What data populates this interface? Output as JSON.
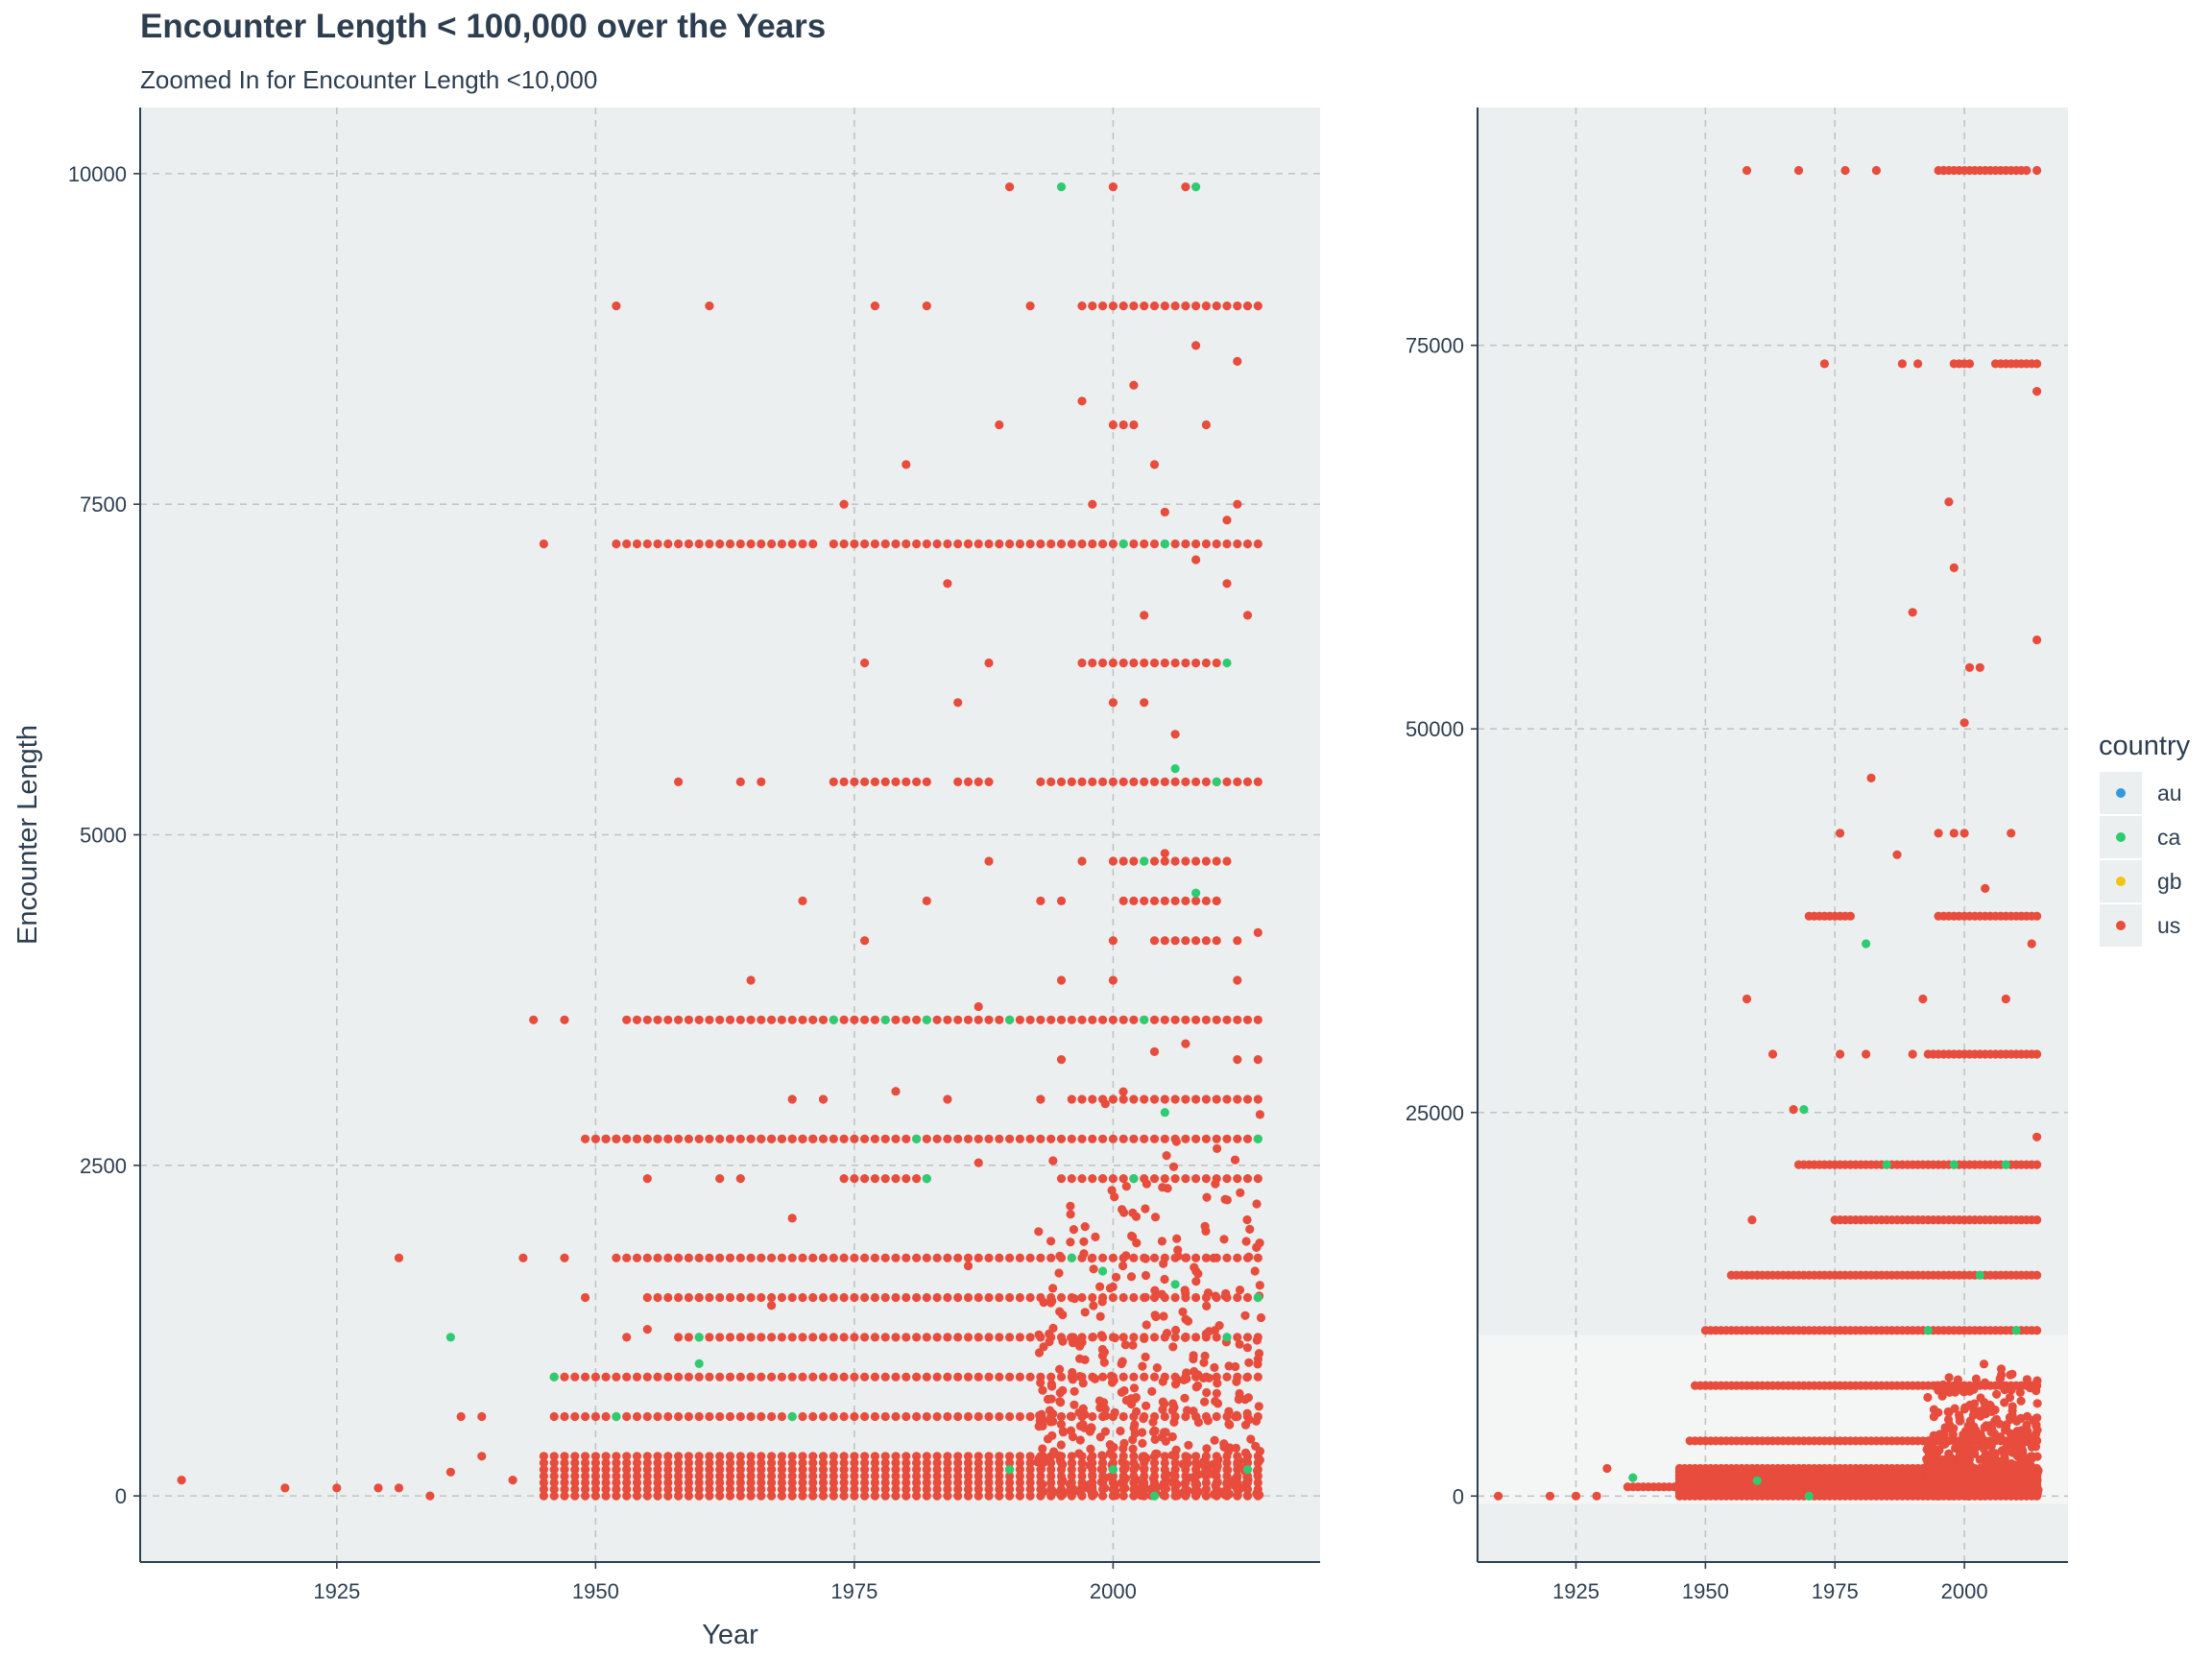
{
  "title": "Encounter Length < 100,000 over the Years",
  "subtitle": "Zoomed In for Encounter Length <10,000",
  "colors": {
    "panel": "#ebeff0",
    "grid": "#bfc4c6",
    "axis": "#2c3e50",
    "zoom": "#f4f6f6",
    "au": "#3498db",
    "ca": "#2ecc71",
    "gb": "#f1c40f",
    "us": "#e74c3c"
  },
  "legend": {
    "title": "country",
    "items": [
      {
        "key": "au",
        "label": "au"
      },
      {
        "key": "ca",
        "label": "ca"
      },
      {
        "key": "gb",
        "label": "gb"
      },
      {
        "key": "us",
        "label": "us"
      }
    ]
  },
  "chart_data": [
    {
      "type": "scatter",
      "xlabel": "Year",
      "ylabel": "Encounter Length",
      "xlim": [
        1906,
        2020
      ],
      "ylim": [
        -500,
        10500
      ],
      "xticks": [
        "1925",
        "1950",
        "1975",
        "2000"
      ],
      "xtick_values": [
        1925,
        1950,
        1975,
        2000
      ],
      "yticks": [
        "0",
        "2500",
        "5000",
        "7500",
        "10000"
      ],
      "ytick_values": [
        0,
        2500,
        5000,
        7500,
        10000
      ],
      "grid": true,
      "sparse_points_us": [
        [
          1910,
          120
        ],
        [
          1920,
          60
        ],
        [
          1925,
          60
        ],
        [
          1929,
          60
        ],
        [
          1931,
          60
        ],
        [
          1931,
          1800
        ],
        [
          1934,
          0
        ],
        [
          1936,
          180
        ],
        [
          1937,
          600
        ],
        [
          1939,
          600
        ],
        [
          1939,
          300
        ],
        [
          1942,
          120
        ],
        [
          1943,
          1800
        ],
        [
          1944,
          3600
        ],
        [
          1945,
          7200
        ],
        [
          1947,
          3600
        ],
        [
          1947,
          1800
        ],
        [
          1952,
          9000
        ],
        [
          1952,
          7200
        ],
        [
          1961,
          9000
        ],
        [
          1977,
          9000
        ],
        [
          1982,
          9000
        ],
        [
          1992,
          9000
        ],
        [
          1990,
          9900
        ],
        [
          2000,
          9900
        ],
        [
          2007,
          9900
        ],
        [
          1980,
          7800
        ],
        [
          1989,
          8100
        ],
        [
          1997,
          8280
        ],
        [
          2002,
          8400
        ],
        [
          2009,
          8100
        ],
        [
          2012,
          8580
        ],
        [
          2008,
          8700
        ],
        [
          1974,
          7500
        ],
        [
          1998,
          7500
        ],
        [
          2005,
          7440
        ],
        [
          2011,
          7380
        ],
        [
          2012,
          7500
        ],
        [
          2004,
          7800
        ],
        [
          1984,
          6900
        ],
        [
          2008,
          7080
        ],
        [
          2011,
          6900
        ],
        [
          2013,
          6660
        ],
        [
          2003,
          6660
        ],
        [
          1976,
          6300
        ],
        [
          1988,
          6300
        ],
        [
          1997,
          6300
        ],
        [
          1985,
          6000
        ],
        [
          2000,
          6000
        ],
        [
          2003,
          6000
        ],
        [
          2006,
          5760
        ],
        [
          1958,
          5400
        ],
        [
          1964,
          5400
        ],
        [
          1966,
          5400
        ],
        [
          1970,
          4500
        ],
        [
          1976,
          4200
        ],
        [
          1982,
          4500
        ],
        [
          1988,
          4800
        ],
        [
          1993,
          4500
        ],
        [
          1995,
          4500
        ],
        [
          1997,
          4800
        ],
        [
          2000,
          4200
        ],
        [
          2005,
          4860
        ],
        [
          2010,
          4500
        ],
        [
          2012,
          4200
        ],
        [
          2014,
          4260
        ],
        [
          1965,
          3900
        ],
        [
          1995,
          3900
        ],
        [
          2000,
          3900
        ],
        [
          2012,
          3900
        ],
        [
          1987,
          3700
        ],
        [
          2004,
          3360
        ],
        [
          2007,
          3420
        ],
        [
          2012,
          3300
        ],
        [
          2014,
          3300
        ],
        [
          1995,
          3300
        ],
        [
          1969,
          3000
        ],
        [
          1972,
          3000
        ],
        [
          1979,
          3060
        ],
        [
          1984,
          3000
        ],
        [
          1993,
          3000
        ],
        [
          1955,
          2400
        ],
        [
          1962,
          2400
        ],
        [
          1964,
          2400
        ],
        [
          1969,
          2100
        ],
        [
          1987,
          2520
        ],
        [
          1999,
          2400
        ],
        [
          1949,
          1500
        ],
        [
          1953,
          1200
        ],
        [
          1955,
          1260
        ],
        [
          1960,
          1500
        ],
        [
          1967,
          1440
        ],
        [
          1986,
          1740
        ]
      ],
      "sparse_points_ca": [
        [
          1995,
          9900
        ],
        [
          2008,
          9900
        ],
        [
          2001,
          7200
        ],
        [
          2005,
          7200
        ],
        [
          2011,
          6300
        ],
        [
          2010,
          5400
        ],
        [
          2006,
          5500
        ],
        [
          2003,
          4800
        ],
        [
          2008,
          4560
        ],
        [
          2003,
          3600
        ],
        [
          2005,
          2900
        ],
        [
          1973,
          3600
        ],
        [
          1978,
          3600
        ],
        [
          1982,
          3600
        ],
        [
          1990,
          3600
        ],
        [
          2014,
          2700
        ],
        [
          1981,
          2700
        ],
        [
          1982,
          2400
        ],
        [
          2002,
          2400
        ],
        [
          1996,
          1800
        ],
        [
          1999,
          1700
        ],
        [
          2006,
          1600
        ],
        [
          2014,
          1500
        ],
        [
          1936,
          1200
        ],
        [
          1946,
          900
        ],
        [
          1952,
          600
        ],
        [
          1960,
          1000
        ],
        [
          1960,
          1200
        ],
        [
          1969,
          600
        ],
        [
          1990,
          200
        ],
        [
          2000,
          200
        ],
        [
          2004,
          0
        ],
        [
          2011,
          1200
        ],
        [
          2013,
          200
        ]
      ],
      "row_segments_us": [
        [
          1953,
          1971,
          7200
        ],
        [
          1973,
          1986,
          7200
        ],
        [
          1986,
          2014,
          7200
        ],
        [
          1997,
          2014,
          9000
        ],
        [
          2000,
          2002,
          8100
        ],
        [
          1998,
          2010,
          6300
        ],
        [
          1973,
          1982,
          5400
        ],
        [
          1985,
          1988,
          5400
        ],
        [
          1993,
          2014,
          5400
        ],
        [
          2000,
          2011,
          4800
        ],
        [
          2001,
          2010,
          4500
        ],
        [
          2004,
          2010,
          4200
        ],
        [
          1953,
          2014,
          3600
        ],
        [
          1949,
          2014,
          2700
        ],
        [
          1951,
          1957,
          2700
        ],
        [
          1966,
          1971,
          2700
        ],
        [
          1996,
          2014,
          3000
        ],
        [
          1974,
          1982,
          2400
        ],
        [
          1995,
          2014,
          2400
        ],
        [
          1952,
          2014,
          1800
        ],
        [
          1955,
          2014,
          1500
        ],
        [
          1958,
          2014,
          1200
        ],
        [
          1946,
          2014,
          900
        ],
        [
          1946,
          2014,
          600
        ],
        [
          1945,
          2014,
          300
        ]
      ]
    },
    {
      "type": "scatter",
      "xlabel": "Year",
      "ylabel": "Encounter Length",
      "xlim": [
        1906,
        2020
      ],
      "ylim": [
        -4300,
        90500
      ],
      "xticks": [
        "1925",
        "1950",
        "1975",
        "2000"
      ],
      "xtick_values": [
        1925,
        1950,
        1975,
        2000
      ],
      "yticks": [
        "0",
        "25000",
        "50000",
        "75000"
      ],
      "ytick_values": [
        0,
        25000,
        50000,
        75000
      ],
      "grid": true,
      "zoom_region": [
        -500,
        10500
      ],
      "sparse_points_us": [
        [
          1910,
          0
        ],
        [
          1920,
          0
        ],
        [
          1925,
          0
        ],
        [
          1929,
          0
        ],
        [
          1931,
          1800
        ],
        [
          1958,
          86400
        ],
        [
          1968,
          86400
        ],
        [
          1977,
          86400
        ],
        [
          1983,
          86400
        ],
        [
          1996,
          86400
        ],
        [
          2014,
          86400
        ],
        [
          1973,
          73800
        ],
        [
          1988,
          73800
        ],
        [
          1991,
          73800
        ],
        [
          2014,
          72000
        ],
        [
          1997,
          64800
        ],
        [
          1998,
          60500
        ],
        [
          1990,
          57600
        ],
        [
          2014,
          55800
        ],
        [
          2000,
          50400
        ],
        [
          2001,
          54000
        ],
        [
          2003,
          54000
        ],
        [
          1982,
          46800
        ],
        [
          1976,
          43200
        ],
        [
          1987,
          41800
        ],
        [
          1995,
          43200
        ],
        [
          1998,
          43200
        ],
        [
          2000,
          43200
        ],
        [
          2009,
          43200
        ],
        [
          2004,
          39600
        ],
        [
          1958,
          32400
        ],
        [
          1963,
          28800
        ],
        [
          1967,
          25200
        ],
        [
          1976,
          28800
        ],
        [
          1981,
          28800
        ],
        [
          1990,
          28800
        ],
        [
          1992,
          32400
        ],
        [
          2008,
          32400
        ],
        [
          2013,
          36000
        ],
        [
          2014,
          23400
        ],
        [
          1959,
          18000
        ],
        [
          1960,
          14400
        ]
      ],
      "sparse_points_ca": [
        [
          1969,
          25200
        ],
        [
          1981,
          36000
        ],
        [
          1998,
          21600
        ],
        [
          2008,
          21600
        ],
        [
          1985,
          21600
        ],
        [
          1993,
          10800
        ],
        [
          2003,
          14400
        ],
        [
          1936,
          1200
        ],
        [
          1960,
          1000
        ],
        [
          1970,
          0
        ],
        [
          2010,
          10800
        ]
      ],
      "row_segments_us": [
        [
          1995,
          2012,
          86400
        ],
        [
          1998,
          2001,
          73800
        ],
        [
          2006,
          2014,
          73800
        ],
        [
          1995,
          2014,
          37800
        ],
        [
          1993,
          2014,
          28800
        ],
        [
          1970,
          1978,
          37800
        ],
        [
          1968,
          2014,
          21600
        ],
        [
          1975,
          2014,
          18000
        ],
        [
          1955,
          2014,
          14400
        ],
        [
          1950,
          2014,
          10800
        ],
        [
          1948,
          2014,
          7200
        ],
        [
          1947,
          2014,
          3600
        ],
        [
          1945,
          2014,
          1800
        ],
        [
          1935,
          2014,
          600
        ]
      ]
    }
  ]
}
